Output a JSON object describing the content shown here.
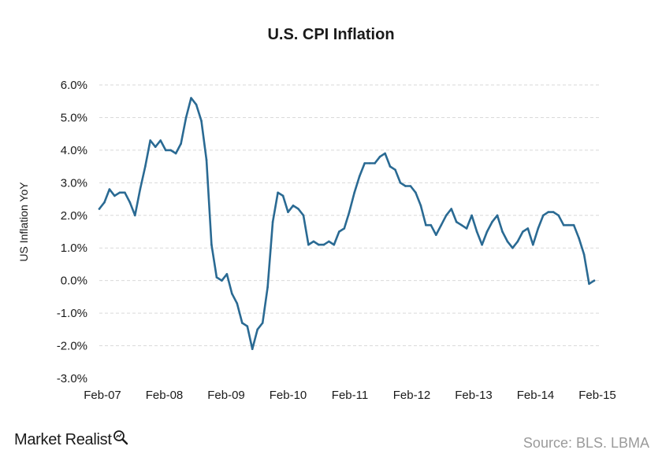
{
  "chart_data": {
    "type": "line",
    "title": "U.S. CPI Inflation",
    "ylabel": "US Inflation YoY",
    "xlabel": "",
    "ylim": [
      -3.0,
      6.0
    ],
    "yticks": [
      "-3.0%",
      "-2.0%",
      "-1.0%",
      "0.0%",
      "1.0%",
      "2.0%",
      "3.0%",
      "4.0%",
      "5.0%",
      "6.0%"
    ],
    "ytick_values": [
      -3,
      -2,
      -1,
      0,
      1,
      2,
      3,
      4,
      5,
      6
    ],
    "xticks": [
      "Feb-07",
      "Feb-08",
      "Feb-09",
      "Feb-10",
      "Feb-11",
      "Feb-12",
      "Feb-13",
      "Feb-14",
      "Feb-15"
    ],
    "x_start": "Feb-07",
    "x_end": "Feb-15",
    "grid": true,
    "series": [
      {
        "color": "#2a6a93",
        "values": [
          2.2,
          2.4,
          2.8,
          2.6,
          2.7,
          2.7,
          2.4,
          2.0,
          2.8,
          3.5,
          4.3,
          4.1,
          4.3,
          4.0,
          4.0,
          3.9,
          4.2,
          5.0,
          5.6,
          5.4,
          4.9,
          3.7,
          1.1,
          0.1,
          0.0,
          0.2,
          -0.4,
          -0.7,
          -1.3,
          -1.4,
          -2.1,
          -1.5,
          -1.3,
          -0.2,
          1.8,
          2.7,
          2.6,
          2.1,
          2.3,
          2.2,
          2.0,
          1.1,
          1.2,
          1.1,
          1.1,
          1.2,
          1.1,
          1.5,
          1.6,
          2.1,
          2.7,
          3.2,
          3.6,
          3.6,
          3.6,
          3.8,
          3.9,
          3.5,
          3.4,
          3.0,
          2.9,
          2.9,
          2.7,
          2.3,
          1.7,
          1.7,
          1.4,
          1.7,
          2.0,
          2.2,
          1.8,
          1.7,
          1.6,
          2.0,
          1.5,
          1.1,
          1.5,
          1.8,
          2.0,
          1.5,
          1.2,
          1.0,
          1.2,
          1.5,
          1.6,
          1.1,
          1.6,
          2.0,
          2.1,
          2.1,
          2.0,
          1.7,
          1.7,
          1.7,
          1.3,
          0.8,
          -0.1,
          0.0
        ]
      }
    ]
  },
  "footer": {
    "brand": "Market Realist",
    "source": "Source: BLS. LBMA"
  },
  "colors": {
    "line": "#2a6a93",
    "brand_icon": "#1a1a1a"
  },
  "icons": {
    "brand": "magnifier-chart-icon"
  }
}
